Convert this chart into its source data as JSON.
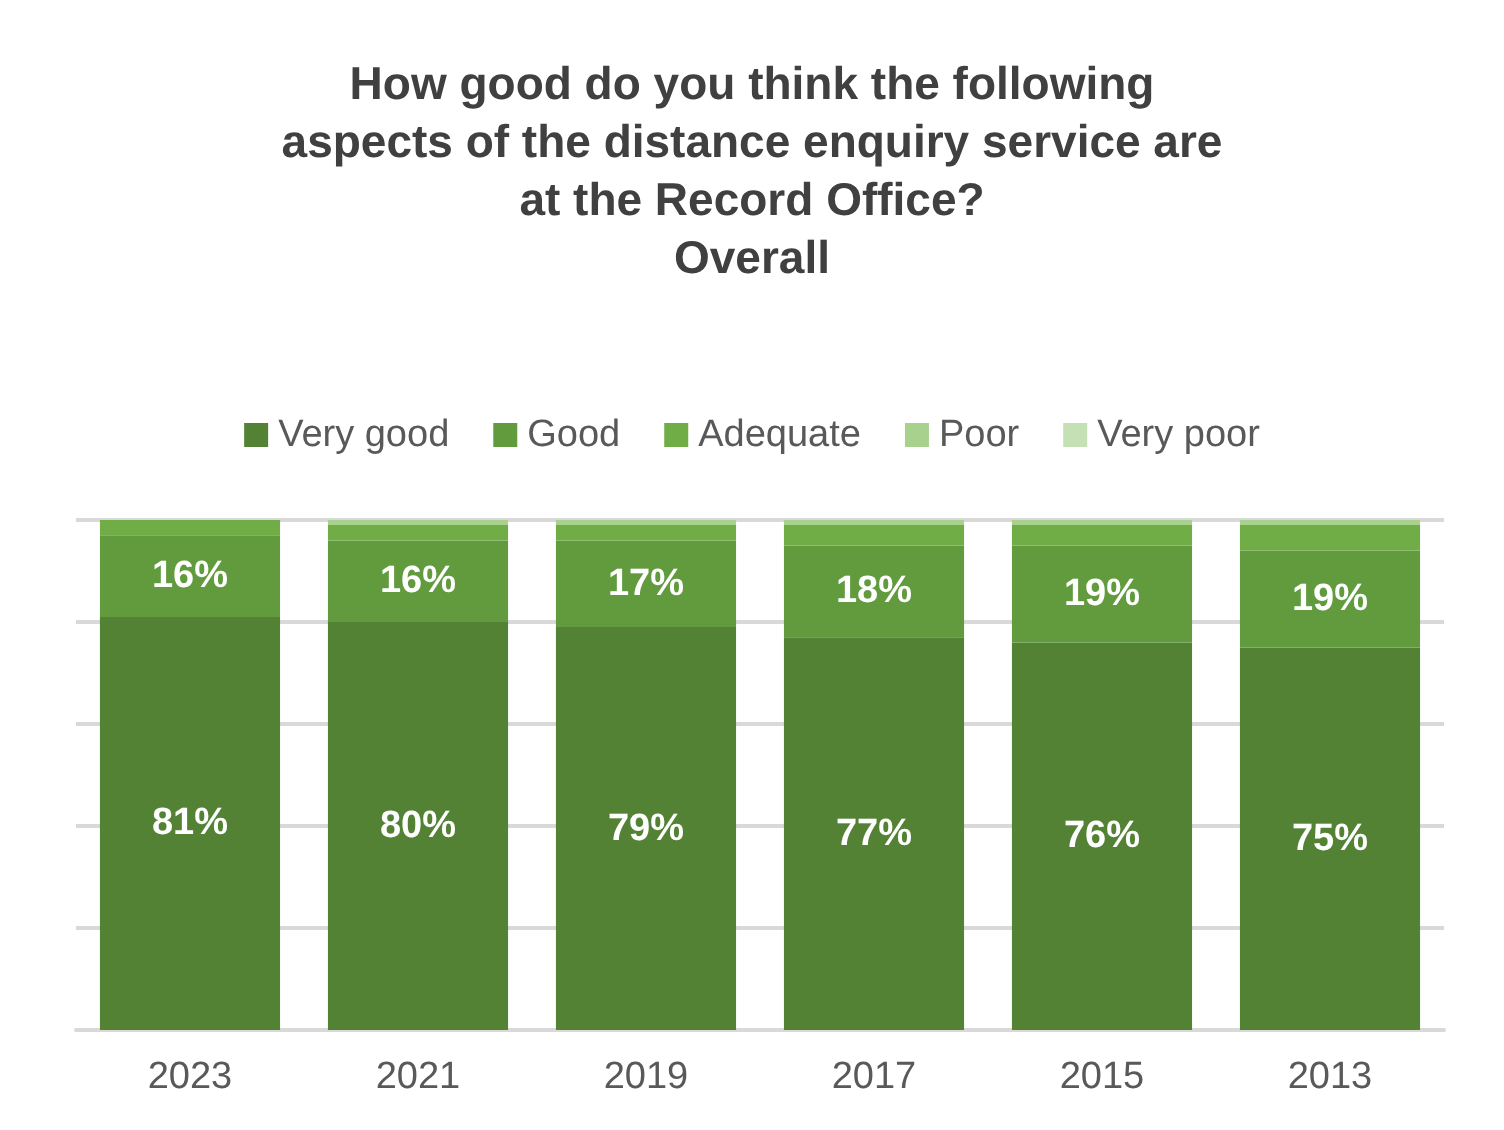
{
  "chart_data": {
    "type": "bar",
    "stacked": true,
    "title": "How good do you think the following\naspects of the distance enquiry service are\nat the Record Office?\nOverall",
    "categories": [
      "2023",
      "2021",
      "2019",
      "2017",
      "2015",
      "2013"
    ],
    "series": [
      {
        "name": "Very good",
        "color": "#548235",
        "values": [
          81,
          80,
          79,
          77,
          76,
          75
        ],
        "value_labels": [
          "81%",
          "80%",
          "79%",
          "77%",
          "76%",
          "75%"
        ]
      },
      {
        "name": "Good",
        "color": "#619b3e",
        "values": [
          16,
          16,
          17,
          18,
          19,
          19
        ],
        "value_labels": [
          "16%",
          "16%",
          "17%",
          "18%",
          "19%",
          "19%"
        ]
      },
      {
        "name": "Adequate",
        "color": "#70ad47",
        "values": [
          3,
          3,
          3,
          4,
          4,
          5
        ]
      },
      {
        "name": "Poor",
        "color": "#a9d18e",
        "values": [
          0,
          1,
          1,
          1,
          1,
          1
        ]
      },
      {
        "name": "Very poor",
        "color": "#c5e0b4",
        "values": [
          0,
          0,
          0,
          0,
          0,
          0
        ]
      }
    ],
    "ylim": [
      0,
      100
    ],
    "yticks": [
      {
        "value": 0,
        "label": null
      },
      {
        "value": 20,
        "label": null
      },
      {
        "value": 40,
        "label": null
      },
      {
        "value": 60,
        "label": null
      },
      {
        "value": 80,
        "label": null
      },
      {
        "value": 100,
        "label": null
      }
    ],
    "grid": "y",
    "legend": "top",
    "tick_labels": "x"
  }
}
